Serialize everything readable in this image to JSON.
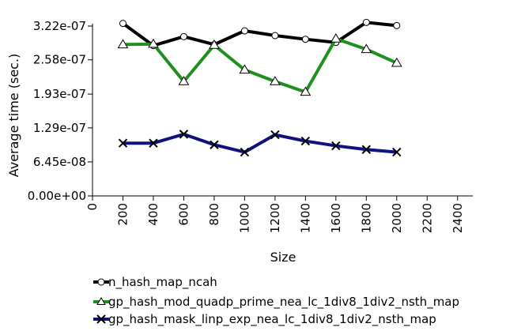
{
  "chart_data": {
    "type": "line",
    "xlabel": "Size",
    "ylabel": "Average time (sec.)",
    "xlim": [
      0,
      2500
    ],
    "ylim": [
      0,
      3.22e-07
    ],
    "x_ticks": [
      0,
      200,
      400,
      600,
      800,
      1000,
      1200,
      1400,
      1600,
      1800,
      2000,
      2200,
      2400
    ],
    "x_tick_labels": [
      "0",
      "200",
      "400",
      "600",
      "800",
      "1000",
      "1200",
      "1400",
      "1600",
      "1800",
      "2000",
      "2200",
      "2400"
    ],
    "y_ticks": [
      0,
      6.45e-08,
      1.29e-07,
      1.93e-07,
      2.58e-07,
      3.22e-07
    ],
    "y_tick_labels": [
      "0.00e+00",
      "6.45e-08",
      "1.29e-07",
      "1.93e-07",
      "2.58e-07",
      "3.22e-07"
    ],
    "grid": false,
    "legend_position": "bottom",
    "x": [
      200,
      400,
      600,
      800,
      1000,
      1200,
      1400,
      1600,
      1800,
      2000
    ],
    "series": [
      {
        "name": "n_hash_map_ncah",
        "color": "#000000",
        "marker": "circle",
        "values": [
          3.27e-07,
          2.85e-07,
          3.02e-07,
          2.87e-07,
          3.13e-07,
          3.04e-07,
          2.97e-07,
          2.91e-07,
          3.29e-07,
          3.23e-07
        ]
      },
      {
        "name": "gp_hash_mod_quadp_prime_nea_lc_1div8_1div2_nsth_map",
        "color": "#1f8f1f",
        "marker": "triangle",
        "values": [
          2.87e-07,
          2.88e-07,
          2.17e-07,
          2.86e-07,
          2.39e-07,
          2.17e-07,
          1.97e-07,
          2.98e-07,
          2.78e-07,
          2.52e-07
        ]
      },
      {
        "name": "gp_hash_mask_linp_exp_nea_lc_1div8_1div2_nsth_map",
        "color": "#10107f",
        "marker": "x",
        "values": [
          1e-07,
          1e-07,
          1.17e-07,
          9.7e-08,
          8.3e-08,
          1.16e-07,
          1.04e-07,
          9.5e-08,
          8.8e-08,
          8.3e-08
        ]
      }
    ]
  }
}
